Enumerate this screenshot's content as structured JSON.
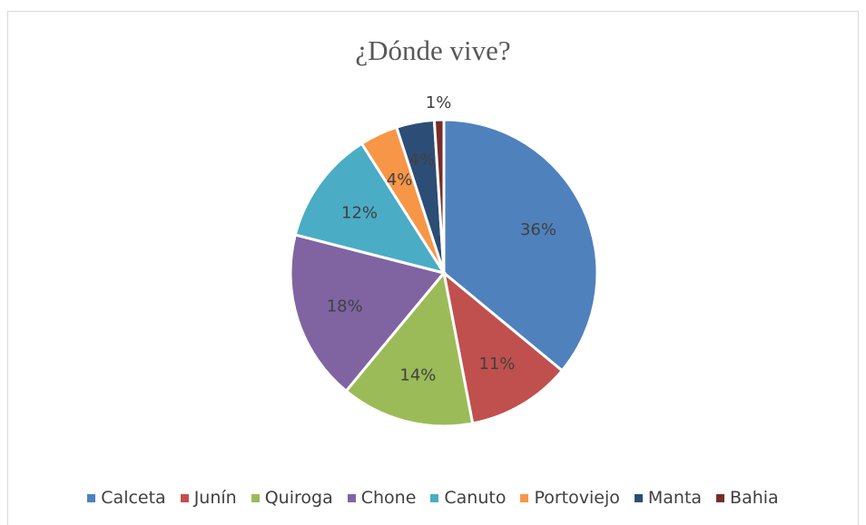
{
  "chart_data": {
    "type": "pie",
    "title": "¿Dónde vive?",
    "categories": [
      "Calceta",
      "Junín",
      "Quiroga",
      "Chone",
      "Canuto",
      "Portoviejo",
      "Manta",
      "Bahia"
    ],
    "values": [
      36,
      11,
      14,
      18,
      12,
      4,
      4,
      1
    ],
    "labels": [
      "36%",
      "11%",
      "14%",
      "18%",
      "12%",
      "4%",
      "4%",
      "1%"
    ],
    "colors": [
      "#4f81bd",
      "#c0504d",
      "#9bbb59",
      "#8064a2",
      "#4bacc6",
      "#f79646",
      "#2c4d75",
      "#772c2a"
    ],
    "legend": "bottom"
  }
}
